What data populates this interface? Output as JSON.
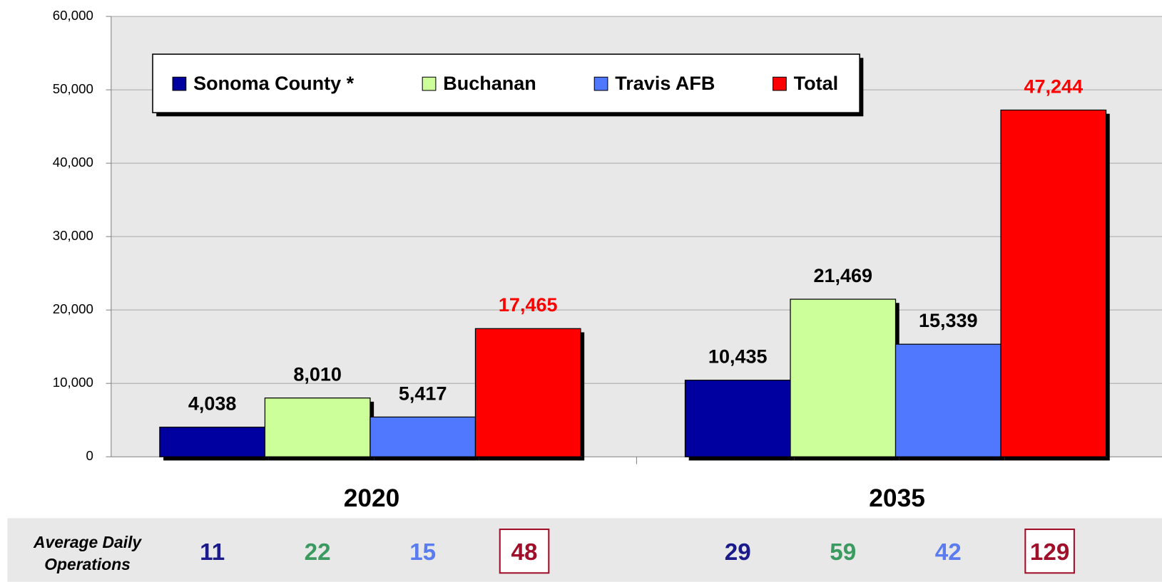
{
  "chart_data": {
    "type": "bar",
    "categories": [
      "2020",
      "2035"
    ],
    "series": [
      {
        "name": "Sonoma County *",
        "color": "#0000a0",
        "label_color": "#000000",
        "values": [
          4038,
          10435
        ],
        "value_labels": [
          "4,038",
          "10,435"
        ]
      },
      {
        "name": "Buchanan",
        "color": "#ccff99",
        "label_color": "#000000",
        "values": [
          8010,
          21469
        ],
        "value_labels": [
          "8,010",
          "21,469"
        ]
      },
      {
        "name": "Travis AFB",
        "color": "#5078ff",
        "label_color": "#000000",
        "values": [
          5417,
          15339
        ],
        "value_labels": [
          "5,417",
          "15,339"
        ]
      },
      {
        "name": "Total",
        "color": "#ff0000",
        "label_color": "#ff0000",
        "values": [
          17465,
          47244
        ],
        "value_labels": [
          "17,465",
          "47,244"
        ]
      }
    ],
    "ylim": [
      0,
      60000
    ],
    "yticks": [
      0,
      {
        "value": 10000,
        "label": "10,000"
      },
      {
        "value": 20000,
        "label": "20,000"
      },
      {
        "value": 30000,
        "label": "30,000"
      },
      {
        "value": 40000,
        "label": "40,000"
      },
      {
        "value": 50000,
        "label": "50,000"
      },
      {
        "value": 60000,
        "label": "60,000"
      }
    ],
    "grid": true,
    "legend": "top",
    "daily_operations": {
      "label": [
        "Average Daily",
        "Operations"
      ],
      "colors": [
        "#1a1a8c",
        "#3a9a60",
        "#5a7cf0",
        "#a0102a"
      ],
      "values": [
        [
          11,
          22,
          15,
          48
        ],
        [
          29,
          59,
          42,
          129
        ]
      ]
    }
  }
}
